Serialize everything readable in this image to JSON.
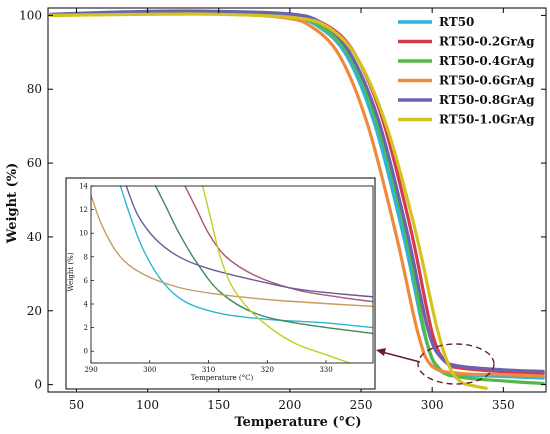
{
  "chart_data": [
    {
      "type": "line",
      "xlabel": "Temperature (°C)",
      "ylabel": "Weight (%)",
      "xlim": [
        30,
        380
      ],
      "ylim": [
        -2,
        102
      ],
      "xticks": [
        50,
        100,
        150,
        200,
        250,
        300,
        350
      ],
      "yticks": [
        0,
        20,
        40,
        60,
        80,
        100
      ],
      "legend": "top-right",
      "grid": false,
      "series": [
        {
          "name": "RT50",
          "color": "#29b6d8",
          "points": [
            [
              32,
              100
            ],
            [
              100,
              100.6
            ],
            [
              150,
              100.6
            ],
            [
              200,
              99.4
            ],
            [
              220,
              97
            ],
            [
              240,
              89
            ],
            [
              260,
              70
            ],
            [
              280,
              40
            ],
            [
              295,
              13
            ],
            [
              305,
              4
            ],
            [
              320,
              2.7
            ],
            [
              350,
              2.2
            ],
            [
              378,
              1.8
            ]
          ]
        },
        {
          "name": "RT50-0.2GrAg",
          "color": "#d63a4e",
          "points": [
            [
              32,
              100.2
            ],
            [
              100,
              101
            ],
            [
              150,
              101
            ],
            [
              200,
              100
            ],
            [
              225,
              97.5
            ],
            [
              245,
              90
            ],
            [
              265,
              72
            ],
            [
              285,
              42
            ],
            [
              300,
              14
            ],
            [
              310,
              6
            ],
            [
              320,
              4.5
            ],
            [
              350,
              3.5
            ],
            [
              378,
              3
            ]
          ]
        },
        {
          "name": "RT50-0.4GrAg",
          "color": "#57b848",
          "points": [
            [
              32,
              100
            ],
            [
              100,
              100.7
            ],
            [
              150,
              100.7
            ],
            [
              200,
              99.8
            ],
            [
              222,
              97
            ],
            [
              242,
              89
            ],
            [
              262,
              70
            ],
            [
              282,
              40
            ],
            [
              296,
              12
            ],
            [
              306,
              4
            ],
            [
              320,
              2
            ],
            [
              350,
              1
            ],
            [
              378,
              0.3
            ]
          ]
        },
        {
          "name": "RT50-0.6GrAg",
          "color": "#f08a3a",
          "points": [
            [
              32,
              100
            ],
            [
              100,
              100.5
            ],
            [
              150,
              100.5
            ],
            [
              195,
              99.4
            ],
            [
              215,
              97
            ],
            [
              235,
              89
            ],
            [
              255,
              70
            ],
            [
              275,
              40
            ],
            [
              290,
              14
            ],
            [
              300,
              5
            ],
            [
              320,
              3
            ],
            [
              350,
              2.7
            ],
            [
              378,
              2.3
            ]
          ]
        },
        {
          "name": "RT50-0.8GrAg",
          "color": "#6a64b0",
          "points": [
            [
              32,
              100.3
            ],
            [
              100,
              101.1
            ],
            [
              150,
              101.1
            ],
            [
              200,
              100.4
            ],
            [
              222,
              98
            ],
            [
              242,
              90
            ],
            [
              262,
              72
            ],
            [
              282,
              42
            ],
            [
              297,
              15
            ],
            [
              307,
              7
            ],
            [
              320,
              5
            ],
            [
              350,
              4
            ],
            [
              378,
              3.6
            ]
          ]
        },
        {
          "name": "RT50-1.0GrAg",
          "color": "#d4c21e",
          "points": [
            [
              32,
              100
            ],
            [
              100,
              100.3
            ],
            [
              150,
              100.3
            ],
            [
              205,
              99.3
            ],
            [
              228,
              96.5
            ],
            [
              248,
              88
            ],
            [
              268,
              70
            ],
            [
              288,
              42
            ],
            [
              303,
              16
            ],
            [
              312,
              5
            ],
            [
              320,
              0.8
            ],
            [
              330,
              -0.4
            ],
            [
              338,
              -1
            ]
          ]
        }
      ]
    },
    {
      "type": "line",
      "role": "inset",
      "xlabel": "Temperature (°C)",
      "ylabel": "Weight (%)",
      "xlim": [
        290,
        338
      ],
      "ylim": [
        -1,
        14
      ],
      "xticks": [
        290,
        300,
        310,
        320,
        330
      ],
      "yticks": [
        0,
        2,
        4,
        6,
        8,
        10,
        12,
        14
      ],
      "series": [
        {
          "name": "RT50",
          "color": "#29b6d8",
          "points": [
            [
              295,
              14
            ],
            [
              297,
              11
            ],
            [
              299,
              8.5
            ],
            [
              302,
              6
            ],
            [
              306,
              4.2
            ],
            [
              312,
              3.2
            ],
            [
              320,
              2.7
            ],
            [
              330,
              2.4
            ],
            [
              338,
              2.0
            ]
          ]
        },
        {
          "name": "RT50-0.2GrAg",
          "color": "#a65a70",
          "points": [
            [
              306,
              14
            ],
            [
              308,
              12
            ],
            [
              310,
              10
            ],
            [
              313,
              8
            ],
            [
              318,
              6.4
            ],
            [
              325,
              5.2
            ],
            [
              332,
              4.6
            ],
            [
              338,
              4.2
            ]
          ]
        },
        {
          "name": "RT50-0.4GrAg",
          "color": "#3f8a5a",
          "points": [
            [
              301,
              14
            ],
            [
              303,
              12
            ],
            [
              305,
              10
            ],
            [
              308,
              7.5
            ],
            [
              312,
              5
            ],
            [
              318,
              3.2
            ],
            [
              326,
              2.3
            ],
            [
              338,
              1.5
            ]
          ]
        },
        {
          "name": "RT50-0.6GrAg",
          "color": "#c99a62",
          "points": [
            [
              290,
              13.2
            ],
            [
              292,
              10.5
            ],
            [
              295,
              8
            ],
            [
              299,
              6.5
            ],
            [
              305,
              5.4
            ],
            [
              312,
              4.8
            ],
            [
              322,
              4.3
            ],
            [
              338,
              3.8
            ]
          ]
        },
        {
          "name": "RT50-0.8GrAg",
          "color": "#6a5c9a",
          "points": [
            [
              296,
              14
            ],
            [
              298,
              11.5
            ],
            [
              301,
              9.5
            ],
            [
              305,
              8
            ],
            [
              310,
              7
            ],
            [
              318,
              6
            ],
            [
              326,
              5.2
            ],
            [
              338,
              4.6
            ]
          ]
        },
        {
          "name": "RT50-1.0GrAg",
          "color": "#c2cf20",
          "points": [
            [
              309,
              14
            ],
            [
              310.5,
              11
            ],
            [
              312,
              8
            ],
            [
              314,
              5.5
            ],
            [
              317,
              3.5
            ],
            [
              321,
              1.8
            ],
            [
              325,
              0.6
            ],
            [
              330,
              -0.3
            ],
            [
              334,
              -1
            ]
          ]
        }
      ]
    }
  ]
}
